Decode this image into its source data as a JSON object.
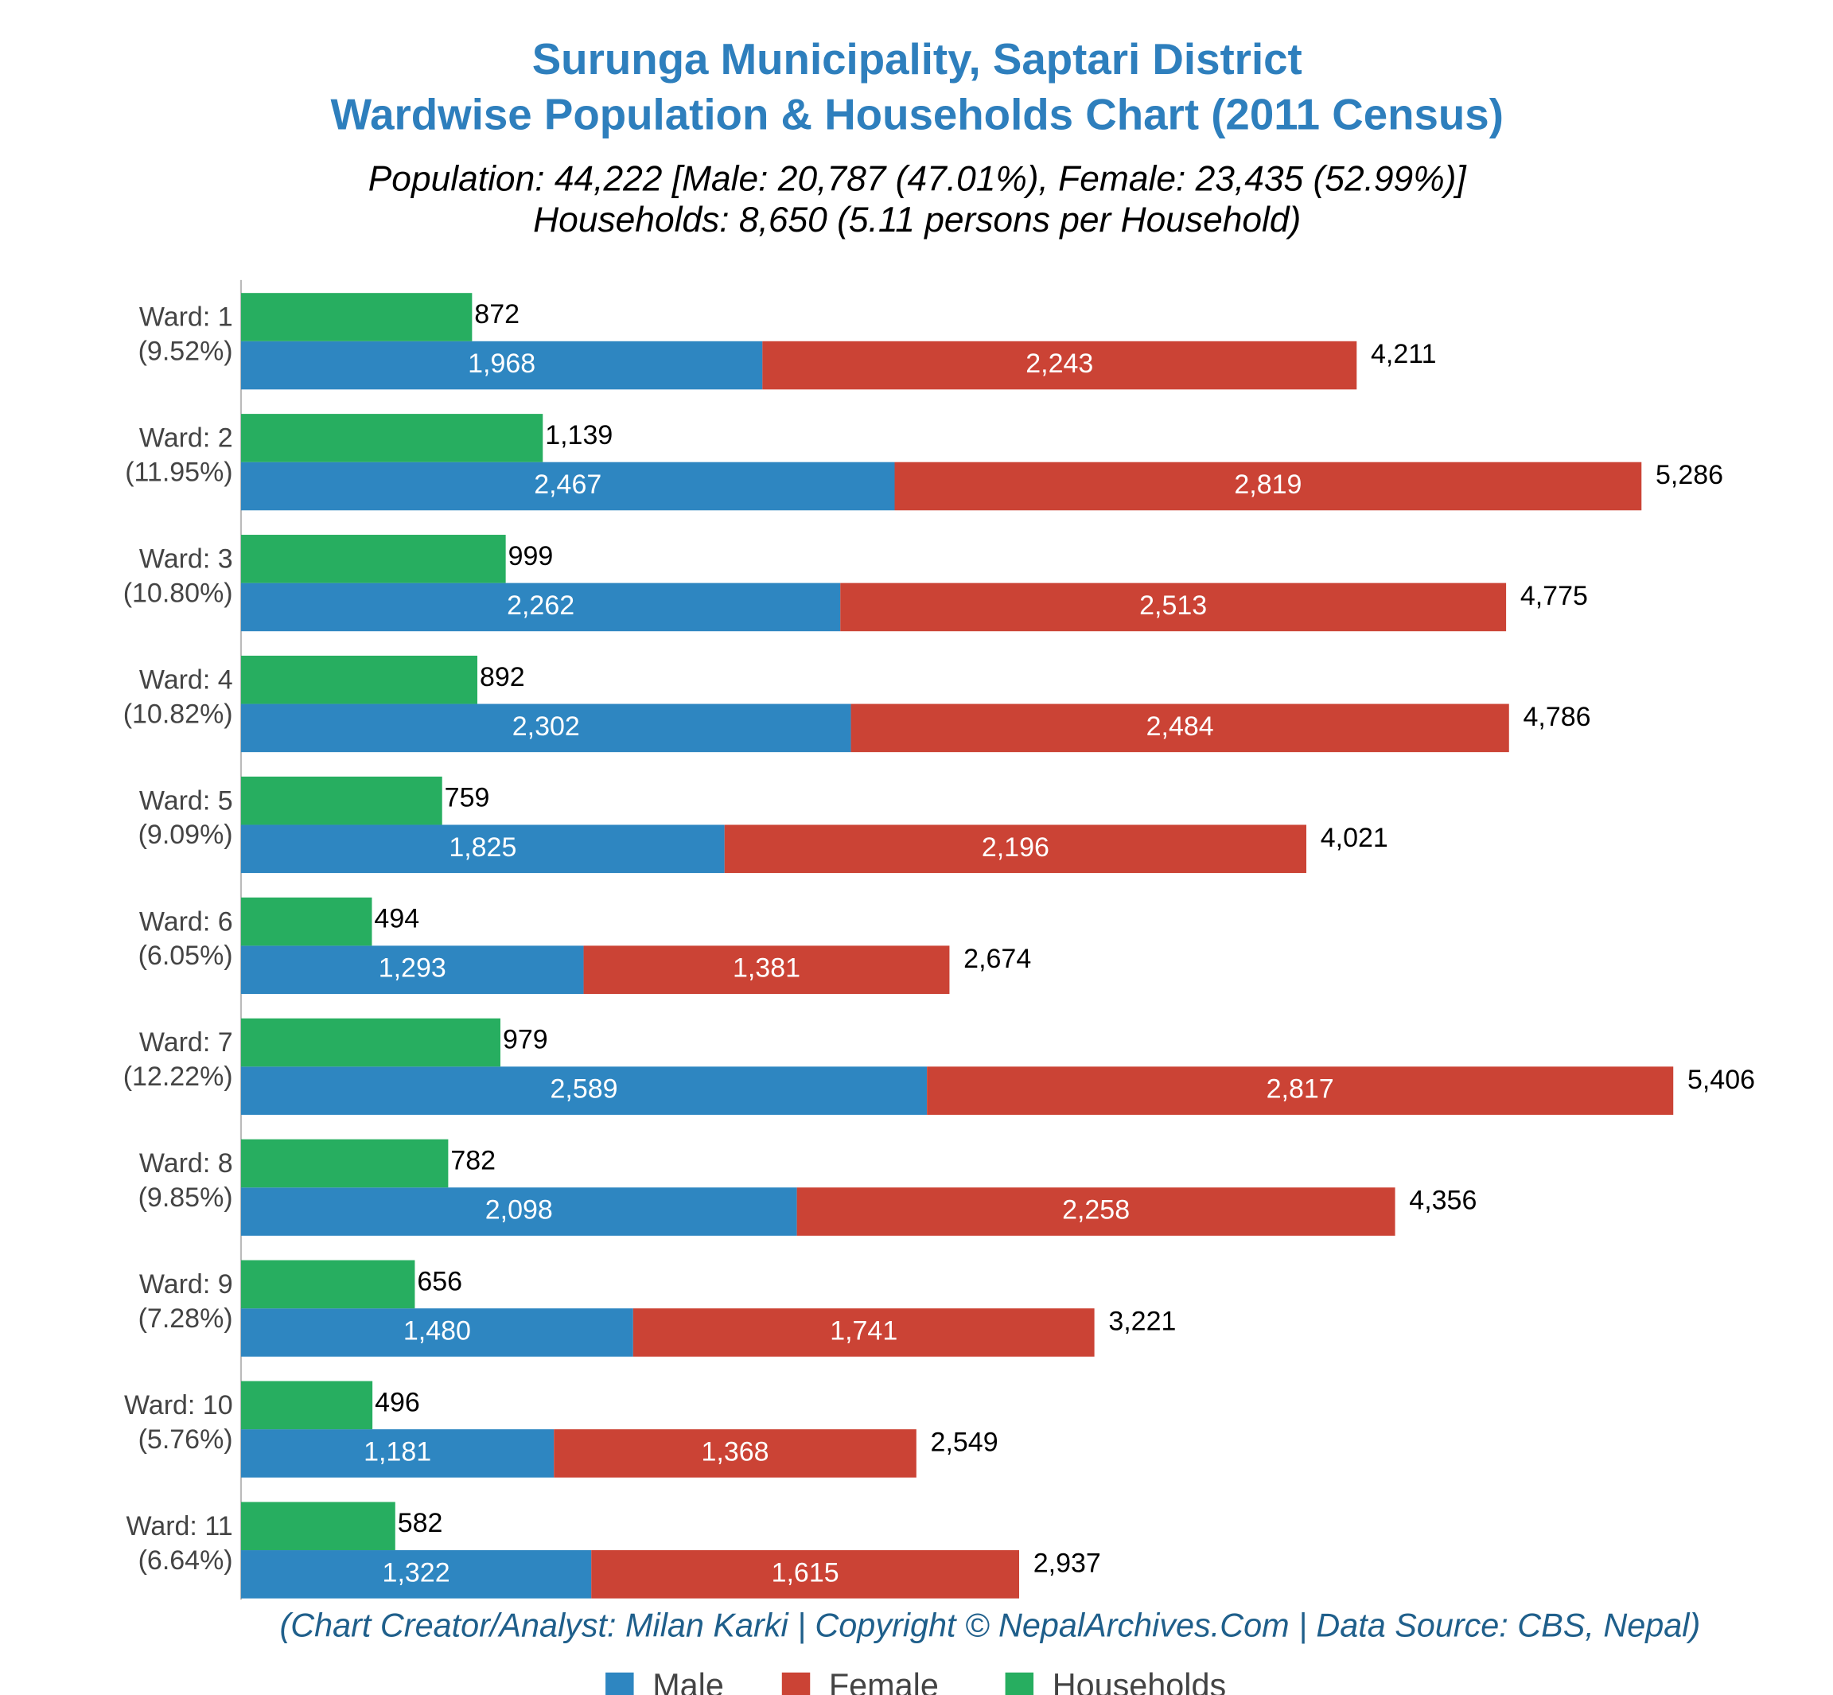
{
  "chart_data": {
    "type": "bar",
    "orientation": "horizontal",
    "title": [
      "Surunga Municipality, Saptari District",
      "Wardwise Population & Households Chart (2011 Census)"
    ],
    "subtitle": [
      "Population: 44,222 [Male: 20,787 (47.01%), Female: 23,435 (52.99%)]",
      "Households: 8,650 (5.11 persons per Household)"
    ],
    "note": "(Chart Creator/Analyst: Milan Karki | Copyright © NepalArchives.Com | Data Source: CBS, Nepal)",
    "categories": [
      "Ward: 1",
      "Ward: 2",
      "Ward: 3",
      "Ward: 4",
      "Ward: 5",
      "Ward: 6",
      "Ward: 7",
      "Ward: 8",
      "Ward: 9",
      "Ward: 10",
      "Ward: 11"
    ],
    "category_shares": [
      "(9.52%)",
      "(11.95%)",
      "(10.80%)",
      "(10.82%)",
      "(9.09%)",
      "(6.05%)",
      "(12.22%)",
      "(9.85%)",
      "(7.28%)",
      "(5.76%)",
      "(6.64%)"
    ],
    "series": [
      {
        "name": "Male",
        "color": "#2e86c1",
        "stack": "population",
        "values": [
          1968,
          2467,
          2262,
          2302,
          1825,
          1293,
          2589,
          2098,
          1480,
          1181,
          1322
        ],
        "value_labels": [
          "1,968",
          "2,467",
          "2,262",
          "2,302",
          "1,825",
          "1,293",
          "2,589",
          "2,098",
          "1,480",
          "1,181",
          "1,322"
        ]
      },
      {
        "name": "Female",
        "color": "#cb4335",
        "stack": "population",
        "values": [
          2243,
          2819,
          2513,
          2484,
          2196,
          1381,
          2817,
          2258,
          1741,
          1368,
          1615
        ],
        "value_labels": [
          "2,243",
          "2,819",
          "2,513",
          "2,484",
          "2,196",
          "1,381",
          "2,817",
          "2,258",
          "1,741",
          "1,368",
          "1,615"
        ]
      },
      {
        "name": "Households",
        "color": "#27ae60",
        "stack": "households",
        "values": [
          872,
          1139,
          999,
          892,
          759,
          494,
          979,
          782,
          656,
          496,
          582
        ],
        "value_labels": [
          "872",
          "1,139",
          "999",
          "892",
          "759",
          "494",
          "979",
          "782",
          "656",
          "496",
          "582"
        ]
      }
    ],
    "totals": [
      4211,
      5286,
      4775,
      4786,
      4021,
      2674,
      5406,
      4356,
      3221,
      2549,
      2937
    ],
    "total_labels": [
      "4,211",
      "5,286",
      "4,775",
      "4,786",
      "4,021",
      "2,674",
      "5,406",
      "4,356",
      "3,221",
      "2,549",
      "2,937"
    ],
    "xlim": [
      0,
      6000
    ],
    "legend": "bottom"
  }
}
